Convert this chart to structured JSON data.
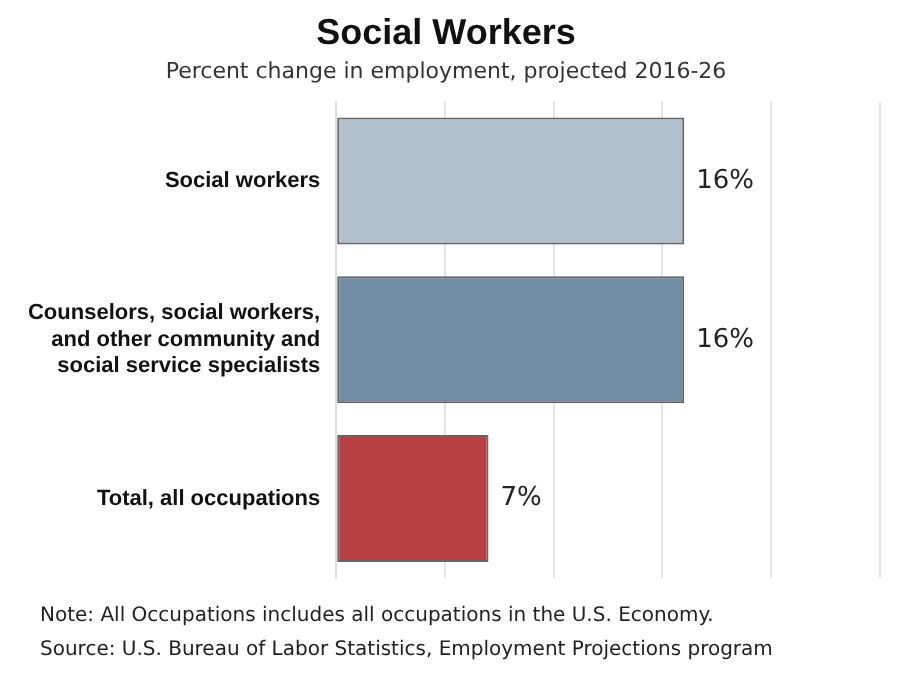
{
  "chart_data": {
    "type": "bar",
    "orientation": "horizontal",
    "title": "Social Workers",
    "subtitle": "Percent change in employment, projected 2016-26",
    "categories": [
      "Social workers",
      "Counselors, social workers, and other community and social service specialists",
      "Total, all occupations"
    ],
    "values": [
      16,
      16,
      7
    ],
    "colors": [
      "#b0c0cc",
      "#718da3",
      "#b84044"
    ],
    "value_labels": [
      "16%",
      "16%",
      "7%"
    ],
    "xlim": [
      0,
      25
    ],
    "xticks": [
      {
        "value": 0,
        "label": null
      },
      {
        "value": 5,
        "label": null
      },
      {
        "value": 10,
        "label": null
      },
      {
        "value": 15,
        "label": null
      },
      {
        "value": 20,
        "label": null
      },
      {
        "value": 25,
        "label": null
      }
    ],
    "tick_labels": "y",
    "grid": "x",
    "legend": false,
    "annotations": [
      "Note: All Occupations includes all occupations in the U.S. Economy.",
      "Source: U.S. Bureau of Labor Statistics, Employment Projections program"
    ]
  }
}
